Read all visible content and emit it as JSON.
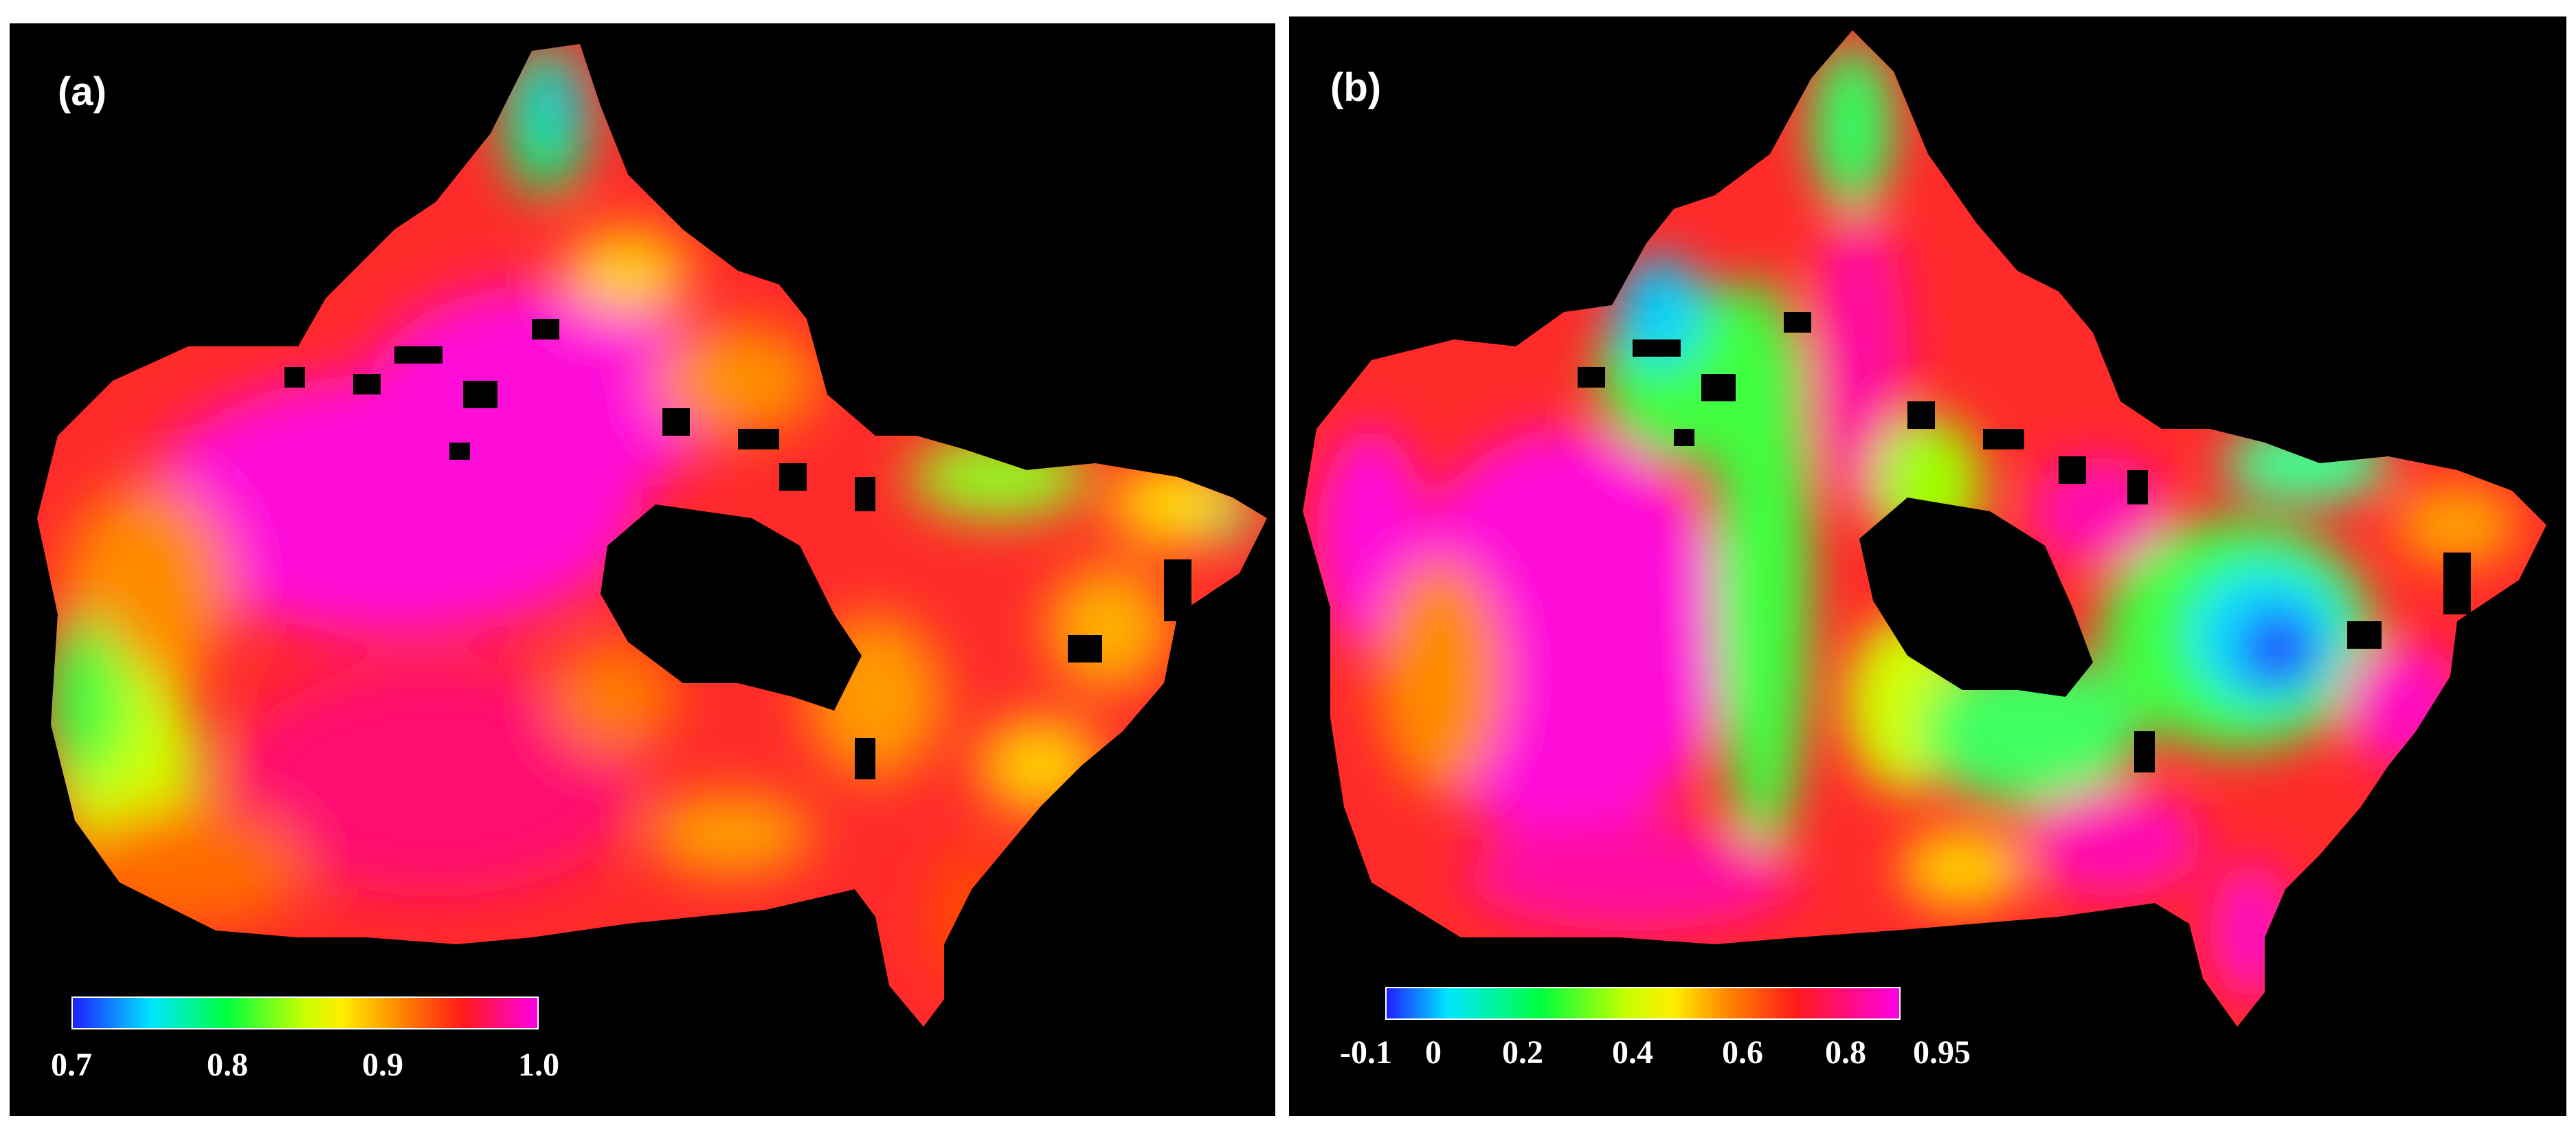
{
  "panels": [
    {
      "label": "(a)",
      "colorbar": {
        "ticks": [
          "0.7",
          "0.8",
          "0.9",
          "1.0"
        ],
        "range": [
          0.7,
          1.0
        ],
        "colors": [
          "#1f1fff",
          "#00e6ff",
          "#00ff40",
          "#c8ff00",
          "#ffee00",
          "#ff8a00",
          "#ff1a1a",
          "#ff00e6"
        ]
      }
    },
    {
      "label": "(b)",
      "colorbar": {
        "ticks": [
          "-0.1",
          "0",
          "0.2",
          "0.4",
          "0.6",
          "0.8",
          "0.95"
        ],
        "range": [
          -0.1,
          0.95
        ],
        "colors": [
          "#1f1fff",
          "#00e6ff",
          "#00ff40",
          "#c8ff00",
          "#ffee00",
          "#ff8a00",
          "#ff1a1a",
          "#ff00e6"
        ]
      }
    }
  ],
  "colors": {
    "background": "#000000",
    "separator": "#ffffff"
  }
}
